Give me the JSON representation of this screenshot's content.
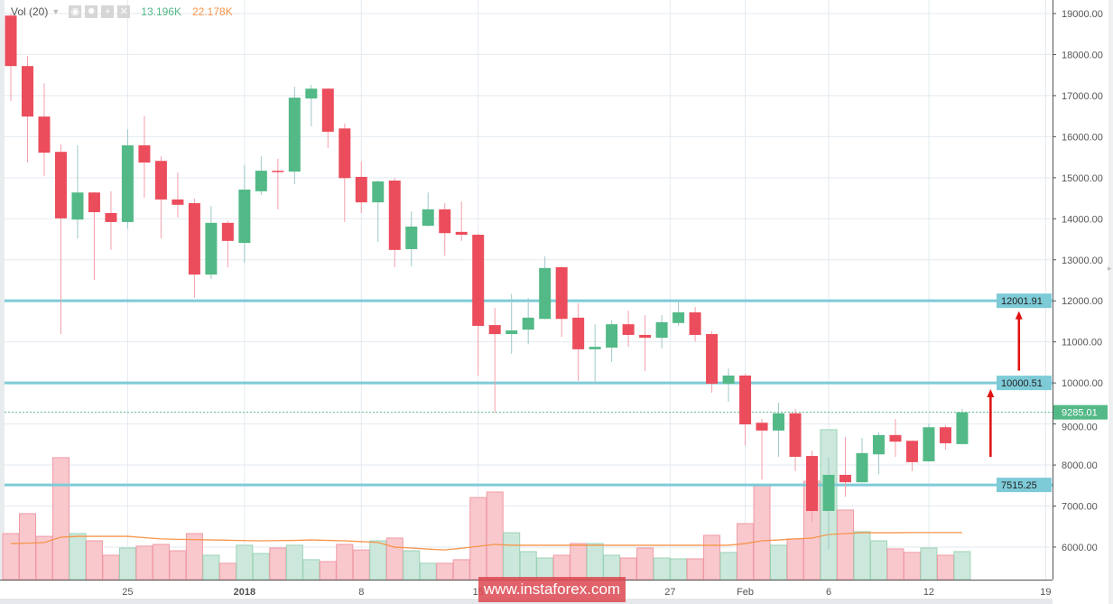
{
  "legend": {
    "indicator": "Vol (20)",
    "volume_value": "13.196K",
    "ma_value": "22.178K",
    "buttons": [
      "eye-icon",
      "gear-icon",
      "plus-icon",
      "close-icon"
    ]
  },
  "watermark": "www.instaforex.com",
  "colors": {
    "up": "#53b987",
    "down": "#eb4d5c",
    "level": "#7ecbd8",
    "ma": "#f7954a",
    "current": "#53b987",
    "arrow": "#e01010"
  },
  "chart_data": {
    "type": "candlestick",
    "y_axis": {
      "range": [
        5300,
        19350
      ],
      "ticks": [
        19000,
        18000,
        17000,
        16000,
        15000,
        14000,
        13000,
        12000,
        11000,
        10000,
        9000,
        8000,
        7000,
        6000
      ],
      "position": "right"
    },
    "x_axis": {
      "tick_labels": [
        {
          "label": "25",
          "index": 7
        },
        {
          "label": "2018",
          "index": 14
        },
        {
          "label": "8",
          "index": 21
        },
        {
          "label": "15",
          "index": 28
        },
        {
          "label": "27",
          "index": 39.5
        },
        {
          "label": "Feb",
          "index": 44
        },
        {
          "label": "6",
          "index": 49
        },
        {
          "label": "12",
          "index": 55
        },
        {
          "label": "19",
          "index": 62
        }
      ]
    },
    "grid": true,
    "levels": [
      {
        "value": 12001.91,
        "label": "12001.91"
      },
      {
        "value": 10000.51,
        "label": "10000.51"
      },
      {
        "value": 7515.25,
        "label": "7515.25"
      }
    ],
    "current_price": {
      "value": 9285.01,
      "label": "9285.01"
    },
    "arrows": [
      {
        "index": 58.7,
        "from": 8200,
        "to": 9850
      },
      {
        "index": 60.4,
        "from": 10300,
        "to": 11750
      }
    ],
    "candles": [
      [
        18950,
        19000,
        16870,
        17720
      ],
      [
        17720,
        17960,
        15370,
        16490
      ],
      [
        16490,
        17300,
        15040,
        15610
      ],
      [
        15630,
        15810,
        11190,
        14010
      ],
      [
        13980,
        15790,
        13520,
        14640
      ],
      [
        14640,
        14650,
        12510,
        14160
      ],
      [
        14140,
        14670,
        13240,
        13920
      ],
      [
        13920,
        16180,
        13760,
        15790
      ],
      [
        15790,
        16510,
        14510,
        15370
      ],
      [
        15410,
        15520,
        13520,
        14470
      ],
      [
        14470,
        15130,
        14030,
        14340
      ],
      [
        14380,
        14490,
        12070,
        12640
      ],
      [
        12640,
        14310,
        12530,
        13900
      ],
      [
        13900,
        13960,
        12820,
        13460
      ],
      [
        13410,
        15300,
        12930,
        14710
      ],
      [
        14670,
        15520,
        14580,
        15170
      ],
      [
        15170,
        15460,
        14230,
        15160
      ],
      [
        15150,
        17220,
        14840,
        16950
      ],
      [
        16930,
        17260,
        16250,
        17170
      ],
      [
        17170,
        17180,
        15720,
        16120
      ],
      [
        16200,
        16320,
        13920,
        14990
      ],
      [
        15020,
        15390,
        14140,
        14400
      ],
      [
        14400,
        14930,
        13430,
        14910
      ],
      [
        14930,
        14990,
        12820,
        13240
      ],
      [
        13260,
        14180,
        12840,
        13810
      ],
      [
        13830,
        14640,
        13810,
        14230
      ],
      [
        14230,
        14380,
        13100,
        13650
      ],
      [
        13680,
        14420,
        13460,
        13610
      ],
      [
        13610,
        13630,
        10180,
        11390
      ],
      [
        11410,
        11830,
        9280,
        11190
      ],
      [
        11190,
        12170,
        10710,
        11280
      ],
      [
        11300,
        12070,
        10940,
        11590
      ],
      [
        11560,
        13080,
        11550,
        12800
      ],
      [
        12820,
        12830,
        11120,
        11560
      ],
      [
        11590,
        11940,
        10050,
        10820
      ],
      [
        10820,
        11430,
        9960,
        10880
      ],
      [
        10860,
        11520,
        10510,
        11430
      ],
      [
        11430,
        11760,
        10880,
        11170
      ],
      [
        11170,
        11650,
        10290,
        11100
      ],
      [
        11100,
        11650,
        10840,
        11480
      ],
      [
        11460,
        11980,
        11390,
        11720
      ],
      [
        11720,
        11850,
        11010,
        11170
      ],
      [
        11190,
        11260,
        9760,
        9980
      ],
      [
        9980,
        10350,
        9540,
        10180
      ],
      [
        10180,
        10220,
        8480,
        8990
      ],
      [
        9030,
        9120,
        7650,
        8840
      ],
      [
        8840,
        9520,
        8200,
        9260
      ],
      [
        9260,
        9370,
        7850,
        8200
      ],
      [
        8220,
        8350,
        6610,
        6880
      ],
      [
        6880,
        8180,
        5950,
        7760
      ],
      [
        7760,
        8680,
        7230,
        7580
      ],
      [
        7580,
        8660,
        7570,
        8290
      ],
      [
        8260,
        8790,
        7780,
        8730
      ],
      [
        8730,
        9120,
        8200,
        8570
      ],
      [
        8590,
        8600,
        7850,
        8070
      ],
      [
        8090,
        9010,
        8080,
        8920
      ],
      [
        8920,
        8970,
        8370,
        8530
      ],
      [
        8510,
        9370,
        8500,
        9285.01
      ]
    ],
    "volume_k": [
      21.7,
      31.1,
      20.4,
      57.5,
      21.7,
      18.3,
      11.5,
      14.9,
      15.8,
      16.6,
      13.6,
      21.7,
      11.5,
      7.7,
      16.2,
      12.3,
      14.9,
      16.2,
      9.4,
      8.5,
      16.6,
      14.0,
      18.3,
      19.6,
      13.6,
      7.7,
      7.7,
      9.4,
      38.7,
      41.3,
      22.1,
      13.2,
      10.2,
      11.5,
      17.0,
      17.0,
      11.5,
      10.2,
      14.9,
      10.2,
      9.8,
      9.8,
      20.9,
      12.8,
      26.4,
      44.3,
      16.2,
      19.2,
      46.4,
      70.7,
      32.8,
      22.6,
      18.3,
      14.5,
      12.8,
      14.9,
      11.5,
      13.196
    ],
    "volume_ma_k": [
      17.0,
      17.2,
      17.5,
      20.0,
      20.4,
      20.4,
      20.4,
      20.4,
      19.8,
      19.2,
      19.0,
      18.9,
      18.7,
      18.6,
      18.4,
      18.3,
      18.4,
      18.5,
      18.7,
      18.5,
      18.3,
      17.9,
      17.5,
      15.3,
      14.9,
      14.4,
      14.0,
      14.8,
      15.7,
      16.6,
      16.2,
      16.2,
      16.2,
      16.2,
      16.2,
      16.2,
      16.2,
      16.2,
      16.2,
      16.2,
      16.2,
      16.2,
      16.2,
      16.2,
      17.0,
      18.3,
      18.7,
      19.2,
      19.6,
      21.3,
      21.7,
      22.1,
      22.1,
      22.1,
      22.2,
      22.2,
      22.2,
      22.178
    ]
  }
}
